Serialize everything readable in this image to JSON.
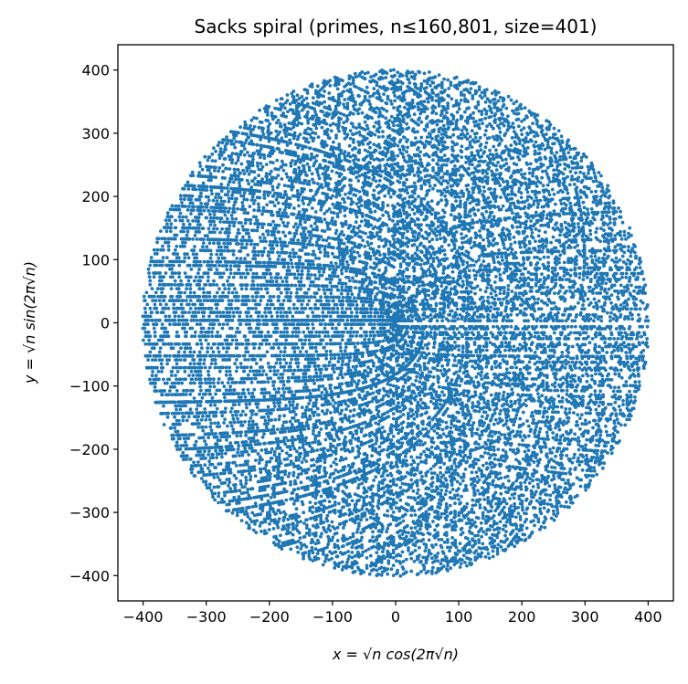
{
  "chart_data": {
    "type": "scatter",
    "title": "Sacks spiral (primes, n≤160,801, size=401)",
    "xlabel": "x = √n cos(2π√n)",
    "ylabel": "y = √n sin(2π√n)",
    "points": {
      "set": "primes",
      "n_max": 160801,
      "x_formula": "sqrt(n)*cos(2*pi*sqrt(n))",
      "y_formula": "sqrt(n)*sin(2*pi*sqrt(n))"
    },
    "xlim": [
      -440,
      440
    ],
    "ylim": [
      -440,
      440
    ],
    "xticks": [
      "−400",
      "−300",
      "−200",
      "−100",
      "0",
      "100",
      "200",
      "300",
      "400"
    ],
    "yticks": [
      "400",
      "300",
      "200",
      "100",
      "0",
      "−100",
      "−200",
      "−300",
      "−400"
    ],
    "xtick_values": [
      -400,
      -300,
      -200,
      -100,
      0,
      100,
      200,
      300,
      400
    ],
    "ytick_values": [
      400,
      300,
      200,
      100,
      0,
      -100,
      -200,
      -300,
      -400
    ],
    "grid": false,
    "color": "#1f77b4"
  }
}
